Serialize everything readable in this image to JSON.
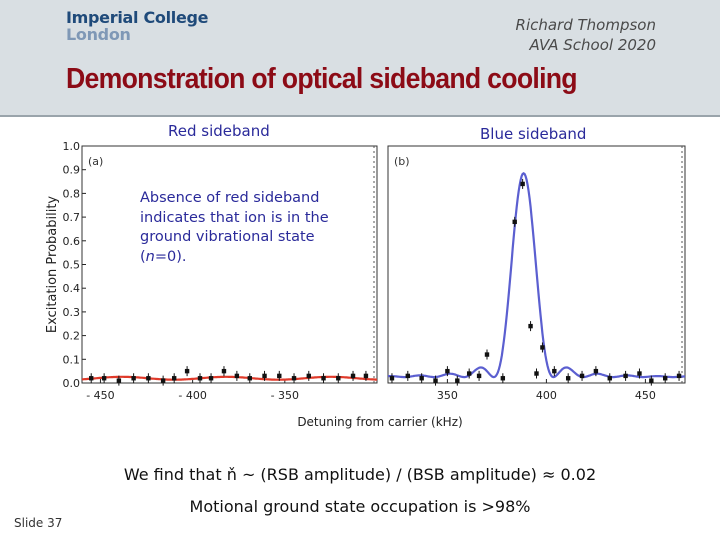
{
  "header": {
    "logo_line1": "Imperial College",
    "logo_line2": "London",
    "author_line1": "Richard Thompson",
    "author_line2": "AVA School 2020"
  },
  "title": "Demonstration of optical sideband cooling",
  "annotation": {
    "text_a": "Absence of red sideband indicates that ion is in the ground vibrational state (",
    "text_n": "n",
    "text_b": "=0)."
  },
  "summary": {
    "line1": "We find that ň ~ (RSB amplitude) / (BSB amplitude) ≈ 0.02",
    "line2": "Motional ground state occupation is >98%"
  },
  "slide_number": "Slide 37",
  "colors": {
    "title": "#8c0b16",
    "red_fit": "#e03a2a",
    "blue_fit": "#5b5fd0",
    "text_blue": "#2a2a9a"
  },
  "chart_data": {
    "type": "scatter",
    "ylabel": "Excitation Probability",
    "xlabel": "Detuning from carrier (kHz)",
    "ylim": [
      0,
      1.0
    ],
    "yticks": [
      "0.0",
      "0.1",
      "0.2",
      "0.3",
      "0.4",
      "0.5",
      "0.6",
      "0.7",
      "0.8",
      "0.9",
      "1.0"
    ],
    "panels": [
      {
        "label": "Red sideband",
        "corner": "(a)",
        "xlim": [
          -460,
          -300
        ],
        "xticks": [
          "- 450",
          "- 400",
          "- 350"
        ],
        "xtick_values": [
          -450,
          -400,
          -350
        ],
        "fit_color": "#e03a2a",
        "points": [
          {
            "x": -455,
            "y": 0.02
          },
          {
            "x": -448,
            "y": 0.02
          },
          {
            "x": -440,
            "y": 0.01
          },
          {
            "x": -432,
            "y": 0.02
          },
          {
            "x": -424,
            "y": 0.02
          },
          {
            "x": -416,
            "y": 0.01
          },
          {
            "x": -410,
            "y": 0.02
          },
          {
            "x": -403,
            "y": 0.05
          },
          {
            "x": -396,
            "y": 0.02
          },
          {
            "x": -390,
            "y": 0.02
          },
          {
            "x": -383,
            "y": 0.05
          },
          {
            "x": -376,
            "y": 0.03
          },
          {
            "x": -369,
            "y": 0.02
          },
          {
            "x": -361,
            "y": 0.03
          },
          {
            "x": -353,
            "y": 0.03
          },
          {
            "x": -345,
            "y": 0.02
          },
          {
            "x": -337,
            "y": 0.03
          },
          {
            "x": -329,
            "y": 0.02
          },
          {
            "x": -321,
            "y": 0.02
          },
          {
            "x": -313,
            "y": 0.03
          },
          {
            "x": -306,
            "y": 0.03
          }
        ]
      },
      {
        "label": "Blue sideband",
        "corner": "(b)",
        "xlim": [
          320,
          470
        ],
        "xticks": [
          "350",
          "400",
          "450"
        ],
        "xtick_values": [
          350,
          400,
          450
        ],
        "fit_color": "#5b5fd0",
        "points": [
          {
            "x": 322,
            "y": 0.02
          },
          {
            "x": 330,
            "y": 0.03
          },
          {
            "x": 337,
            "y": 0.02
          },
          {
            "x": 344,
            "y": 0.01
          },
          {
            "x": 350,
            "y": 0.05
          },
          {
            "x": 355,
            "y": 0.01
          },
          {
            "x": 361,
            "y": 0.04
          },
          {
            "x": 366,
            "y": 0.03
          },
          {
            "x": 370,
            "y": 0.12
          },
          {
            "x": 378,
            "y": 0.02
          },
          {
            "x": 384,
            "y": 0.68
          },
          {
            "x": 388,
            "y": 0.84
          },
          {
            "x": 392,
            "y": 0.24
          },
          {
            "x": 395,
            "y": 0.04
          },
          {
            "x": 398,
            "y": 0.15
          },
          {
            "x": 404,
            "y": 0.05
          },
          {
            "x": 411,
            "y": 0.02
          },
          {
            "x": 418,
            "y": 0.03
          },
          {
            "x": 425,
            "y": 0.05
          },
          {
            "x": 432,
            "y": 0.02
          },
          {
            "x": 440,
            "y": 0.03
          },
          {
            "x": 447,
            "y": 0.04
          },
          {
            "x": 453,
            "y": 0.01
          },
          {
            "x": 460,
            "y": 0.02
          },
          {
            "x": 467,
            "y": 0.03
          }
        ]
      }
    ]
  }
}
